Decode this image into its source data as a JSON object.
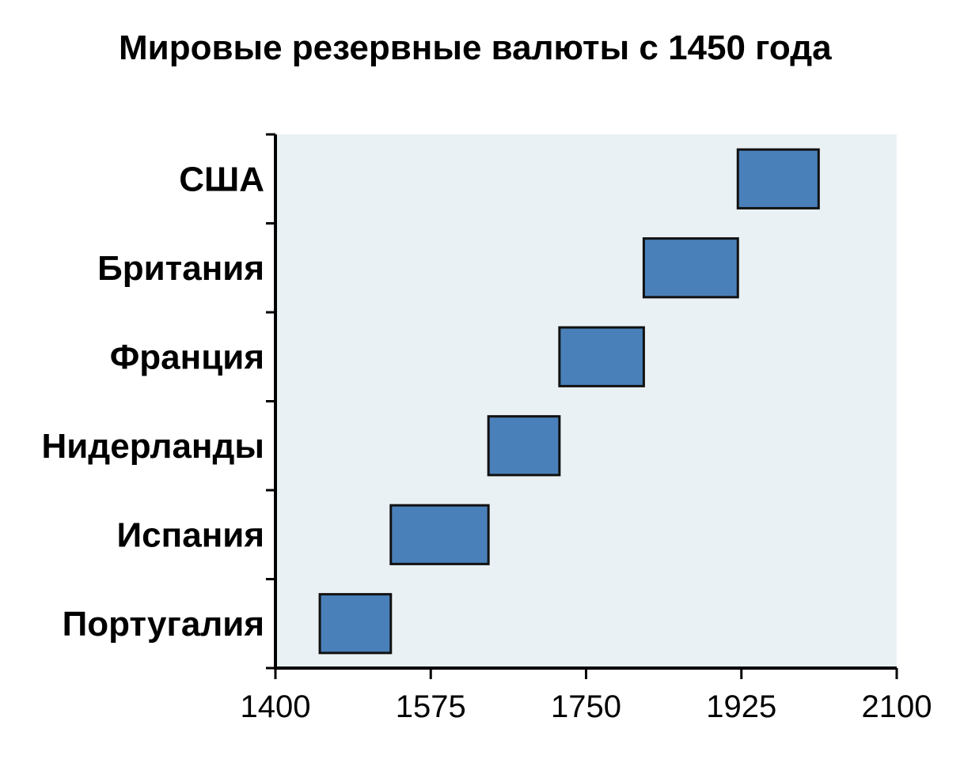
{
  "chart_data": {
    "type": "bar",
    "orientation": "horizontal-range",
    "title": "Мировые резервные валюты с 1450 года",
    "xlabel": "",
    "ylabel": "",
    "xlim": [
      1400,
      2100
    ],
    "xticks": [
      1400,
      1575,
      1750,
      1925,
      2100
    ],
    "grid": false,
    "legend": "none",
    "categories": [
      "США",
      "Британия",
      "Франция",
      "Нидерланды",
      "Испания",
      "Португалия"
    ],
    "ranges": [
      {
        "category": "США",
        "start": 1921,
        "end": 2012
      },
      {
        "category": "Британия",
        "start": 1815,
        "end": 1921
      },
      {
        "category": "Франция",
        "start": 1720,
        "end": 1815
      },
      {
        "category": "Нидерланды",
        "start": 1640,
        "end": 1720
      },
      {
        "category": "Испания",
        "start": 1530,
        "end": 1640
      },
      {
        "category": "Португалия",
        "start": 1450,
        "end": 1530
      }
    ],
    "colors": {
      "bar_fill": "#4a80b9",
      "bar_stroke": "#111111",
      "plot_background": "#e9f1f5",
      "axis": "#000000"
    }
  }
}
